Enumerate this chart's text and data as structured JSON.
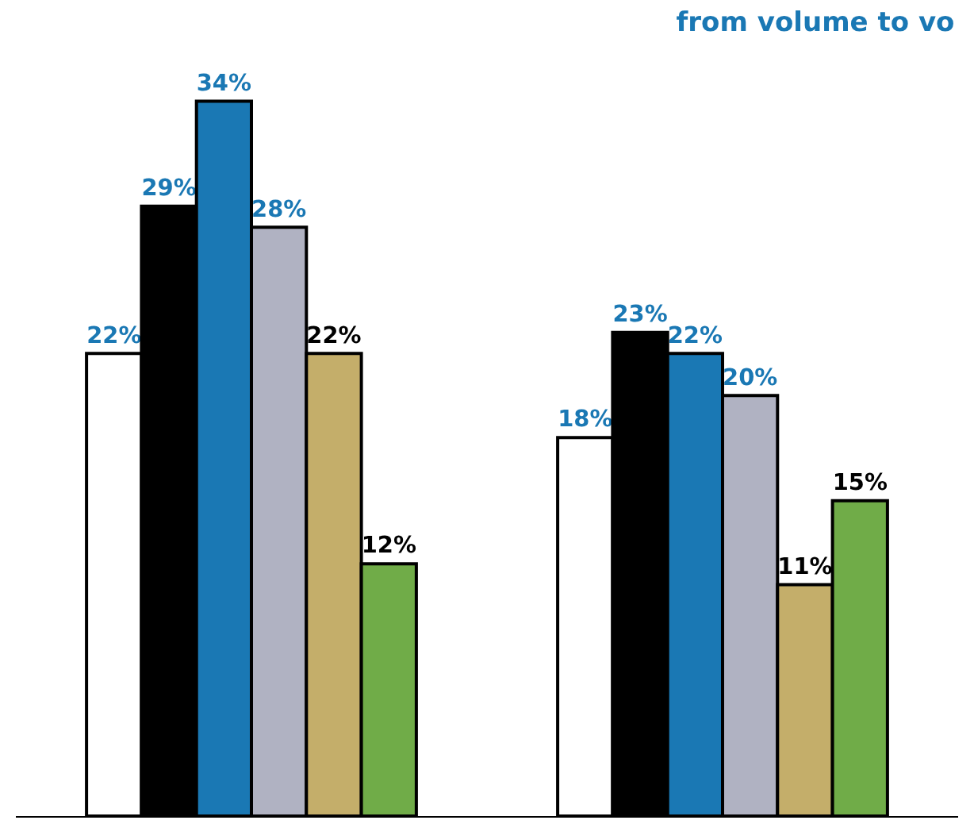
{
  "chart_data": {
    "type": "bar",
    "title": "from volume to vo",
    "categories": [
      null,
      null
    ],
    "legend": false,
    "tick_labels": false,
    "series": [
      {
        "color": "#ffffff",
        "values": [
          22,
          18
        ],
        "value_labels": [
          "22%",
          "18%"
        ]
      },
      {
        "color": "#000000",
        "values": [
          29,
          23
        ],
        "value_labels": [
          "29%",
          "23%"
        ]
      },
      {
        "color": "#1a78b4",
        "values": [
          34,
          22
        ],
        "value_labels": [
          "34%",
          "22%"
        ]
      },
      {
        "color": "#b0b2c2",
        "values": [
          28,
          20
        ],
        "value_labels": [
          "28%",
          "20%"
        ]
      },
      {
        "color": "#c4ae6a",
        "values": [
          22,
          11
        ],
        "value_labels": [
          "22%",
          "11%"
        ]
      },
      {
        "color": "#70ac48",
        "values": [
          12,
          15
        ],
        "value_labels": [
          "12%",
          "15%"
        ]
      }
    ]
  }
}
